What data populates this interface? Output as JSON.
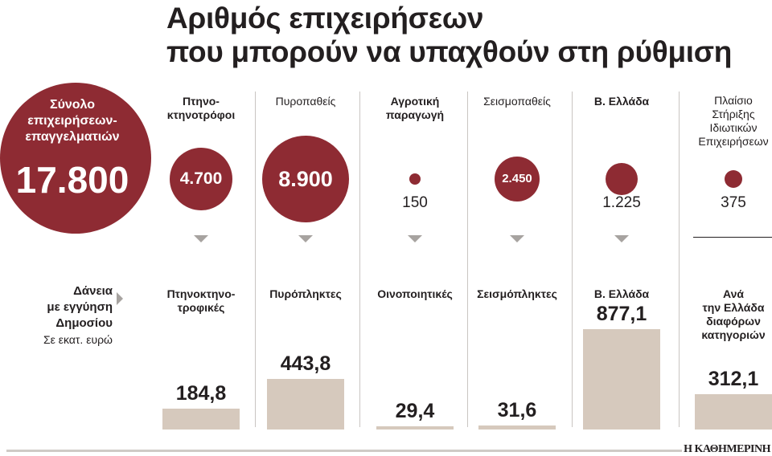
{
  "title": [
    "Αριθμός επιχειρήσεων",
    "που μπορούν να υπαχθούν στη ρύθμιση"
  ],
  "colors": {
    "accent": "#8e2b33",
    "bar": "#d6c9bd",
    "text": "#231f20",
    "arrow": "#a7a3a0"
  },
  "total": {
    "label": "Σύνολο\nεπιχειρήσεων-\nεπαγγελματιών",
    "value": "17.800"
  },
  "loans_section": {
    "label_strong": "Δάνεια\nμε εγγύηση\nΔημοσίου",
    "unit": "Σε εκατ. ευρώ"
  },
  "chart_data": [
    {
      "type": "bubble",
      "title": "Αριθμός επιχειρήσεων που μπορούν να υπαχθούν στη ρύθμιση",
      "total": 17800,
      "categories": [
        "Πτηνο-\nκτηνοτρόφοι",
        "Πυροπαθείς",
        "Αγροτική\nπαραγωγή",
        "Σεισμοπαθείς",
        "Β. Ελλάδα",
        "Πλαίσιο\nΣτήριξης\nΙδιωτικών\nΕπιχειρήσεων"
      ],
      "values": [
        4700,
        8900,
        150,
        2450,
        1225,
        375
      ],
      "value_labels": [
        "4.700",
        "8.900",
        "150",
        "2.450",
        "1.225",
        "375"
      ]
    },
    {
      "type": "bar",
      "title": "Δάνεια με εγγύηση Δημοσίου",
      "ylabel": "Σε εκατ. ευρώ",
      "categories": [
        "Πτηνοκτηνο-\nτροφικές",
        "Πυρόπληκτες",
        "Οινοποιητικές",
        "Σεισμόπληκτες",
        "Β. Ελλάδα",
        "Ανά\nτην Ελλάδα\nδιαφόρων\nκατηγοριών"
      ],
      "values": [
        184.8,
        443.8,
        29.4,
        31.6,
        877.1,
        312.1
      ],
      "value_labels": [
        "184,8",
        "443,8",
        "29,4",
        "31,6",
        "877,1",
        "312,1"
      ]
    }
  ],
  "source": "Η ΚΑΘΗΜΕΡΙΝΗ"
}
